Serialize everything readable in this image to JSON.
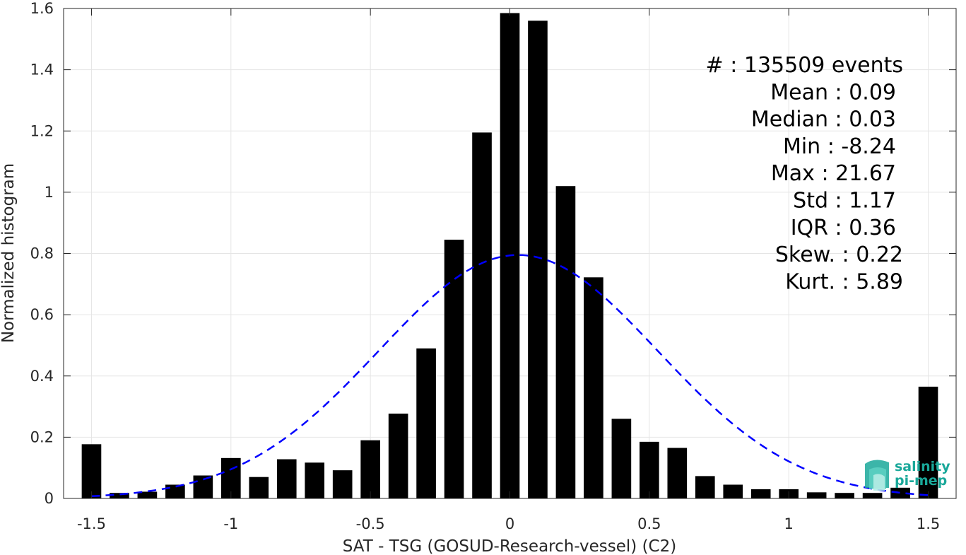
{
  "chart_data": {
    "type": "bar",
    "xlabel": "SAT - TSG (GOSUD-Research-vessel) (C2)",
    "ylabel": "Normalized histogram",
    "xlim": [
      -1.6,
      1.6
    ],
    "ylim": [
      0,
      1.6
    ],
    "grid": true,
    "xticks": [
      -1.5,
      -1,
      -0.5,
      0,
      0.5,
      1,
      1.5
    ],
    "xtick_labels": [
      "-1.5",
      "-1",
      "-0.5",
      "0",
      "0.5",
      "1",
      "1.5"
    ],
    "yticks": [
      0,
      0.2,
      0.4,
      0.6,
      0.8,
      1,
      1.2,
      1.4,
      1.6
    ],
    "ytick_labels": [
      "0",
      "0.2",
      "0.4",
      "0.6",
      "0.8",
      "1",
      "1.2",
      "1.4",
      "1.6"
    ],
    "bar_color": "#000000",
    "bins": [
      -1.5,
      -1.4,
      -1.3,
      -1.2,
      -1.1,
      -1.0,
      -0.9,
      -0.8,
      -0.7,
      -0.6,
      -0.5,
      -0.4,
      -0.3,
      -0.2,
      -0.1,
      0.0,
      0.1,
      0.2,
      0.3,
      0.4,
      0.5,
      0.6,
      0.7,
      0.8,
      0.9,
      1.0,
      1.1,
      1.2,
      1.3,
      1.4,
      1.5
    ],
    "values": [
      0.177,
      0.018,
      0.022,
      0.045,
      0.075,
      0.132,
      0.07,
      0.128,
      0.117,
      0.092,
      0.19,
      0.277,
      0.49,
      0.845,
      1.195,
      1.585,
      1.56,
      1.02,
      0.722,
      0.26,
      0.185,
      0.165,
      0.073,
      0.045,
      0.03,
      0.03,
      0.02,
      0.018,
      0.018,
      0.035,
      0.365
    ],
    "fit_curve": {
      "type": "gaussian",
      "mean": 0.03,
      "peak": 0.795,
      "sigma": 0.5,
      "color": "#0000ff",
      "style": "dashed"
    },
    "stats": [
      {
        "label": "#  : 135509 events"
      },
      {
        "label": "Mean : 0.09"
      },
      {
        "label": "Median : 0.03"
      },
      {
        "label": "Min : -8.24"
      },
      {
        "label": "Max : 21.67"
      },
      {
        "label": "Std : 1.17"
      },
      {
        "label": "IQR : 0.36"
      },
      {
        "label": "Skew. : 0.22"
      },
      {
        "label": "Kurt. : 5.89"
      }
    ]
  },
  "logo": {
    "line1": "salinity",
    "line2": "pi-mep",
    "color": "#1aa89a"
  }
}
